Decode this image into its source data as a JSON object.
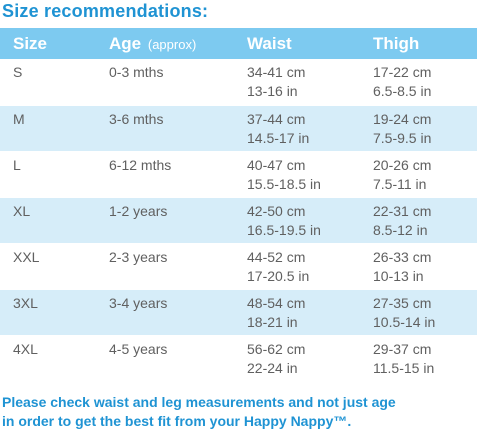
{
  "title": "Size recommendations:",
  "table": {
    "headers": {
      "size": "Size",
      "age": "Age",
      "age_note": "(approx)",
      "waist": "Waist",
      "thigh": "Thigh"
    },
    "rows": [
      {
        "size": "S",
        "age": "0-3 mths",
        "waist_cm": "34-41 cm",
        "waist_in": "13-16 in",
        "thigh_cm": "17-22 cm",
        "thigh_in": "6.5-8.5 in"
      },
      {
        "size": "M",
        "age": "3-6 mths",
        "waist_cm": "37-44 cm",
        "waist_in": "14.5-17 in",
        "thigh_cm": "19-24 cm",
        "thigh_in": "7.5-9.5 in"
      },
      {
        "size": "L",
        "age": "6-12 mths",
        "waist_cm": "40-47 cm",
        "waist_in": "15.5-18.5 in",
        "thigh_cm": "20-26 cm",
        "thigh_in": "7.5-11 in"
      },
      {
        "size": "XL",
        "age": "1-2 years",
        "waist_cm": "42-50 cm",
        "waist_in": "16.5-19.5 in",
        "thigh_cm": "22-31 cm",
        "thigh_in": "8.5-12 in"
      },
      {
        "size": "XXL",
        "age": "2-3 years",
        "waist_cm": "44-52 cm",
        "waist_in": "17-20.5 in",
        "thigh_cm": "26-33 cm",
        "thigh_in": "10-13 in"
      },
      {
        "size": "3XL",
        "age": "3-4 years",
        "waist_cm": "48-54 cm",
        "waist_in": "18-21 in",
        "thigh_cm": "27-35 cm",
        "thigh_in": "10.5-14 in"
      },
      {
        "size": "4XL",
        "age": "4-5 years",
        "waist_cm": "56-62 cm",
        "waist_in": "22-24 in",
        "thigh_cm": "29-37 cm",
        "thigh_in": "11.5-15 in"
      }
    ]
  },
  "footnote": {
    "line1": "Please check waist and leg measurements and not just age",
    "line2": "in order to get the best fit from your Happy Nappy™."
  },
  "colors": {
    "accent": "#1f93d3",
    "header_bg": "#7dcaf0",
    "row_shade": "#d6edf9",
    "text": "#606060"
  }
}
